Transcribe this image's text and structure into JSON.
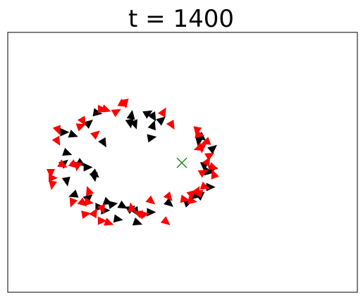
{
  "chart_data": {
    "type": "scatter",
    "title": "t = 1400",
    "marker": "triangle-arrow",
    "frame": "box",
    "axes_visible": false,
    "grid": false,
    "xlim": [
      0,
      1
    ],
    "ylim": [
      0,
      1
    ],
    "colors": {
      "red": "#ff0000",
      "black": "#000000",
      "target": "#228b22"
    },
    "target": {
      "x": 0.498,
      "y": 0.498,
      "symbol": "x"
    },
    "series": [
      {
        "color": "red",
        "points": [
          {
            "x": 0.27,
            "y": 0.705,
            "a": 0
          },
          {
            "x": 0.33,
            "y": 0.723,
            "a": -30
          },
          {
            "x": 0.446,
            "y": 0.695,
            "a": 60
          },
          {
            "x": 0.47,
            "y": 0.642,
            "a": -60
          },
          {
            "x": 0.541,
            "y": 0.62,
            "a": -100
          },
          {
            "x": 0.549,
            "y": 0.606,
            "a": -10
          },
          {
            "x": 0.566,
            "y": 0.577,
            "a": 200
          },
          {
            "x": 0.555,
            "y": 0.553,
            "a": -90
          },
          {
            "x": 0.579,
            "y": 0.528,
            "a": 30
          },
          {
            "x": 0.572,
            "y": 0.505,
            "a": 60
          },
          {
            "x": 0.589,
            "y": 0.48,
            "a": -20
          },
          {
            "x": 0.589,
            "y": 0.455,
            "a": 110
          },
          {
            "x": 0.56,
            "y": 0.463,
            "a": 30
          },
          {
            "x": 0.544,
            "y": 0.384,
            "a": 160
          },
          {
            "x": 0.507,
            "y": 0.357,
            "a": -10
          },
          {
            "x": 0.462,
            "y": 0.365,
            "a": -50
          },
          {
            "x": 0.454,
            "y": 0.27,
            "a": -40
          },
          {
            "x": 0.392,
            "y": 0.3,
            "a": 10
          },
          {
            "x": 0.372,
            "y": 0.305,
            "a": 160
          },
          {
            "x": 0.29,
            "y": 0.266,
            "a": -20
          },
          {
            "x": 0.27,
            "y": 0.275,
            "a": 0
          },
          {
            "x": 0.224,
            "y": 0.301,
            "a": 10
          },
          {
            "x": 0.216,
            "y": 0.342,
            "a": -40
          },
          {
            "x": 0.184,
            "y": 0.344,
            "a": -110
          },
          {
            "x": 0.127,
            "y": 0.412,
            "a": -100
          },
          {
            "x": 0.123,
            "y": 0.458,
            "a": -90
          },
          {
            "x": 0.158,
            "y": 0.489,
            "a": -30
          },
          {
            "x": 0.19,
            "y": 0.489,
            "a": -40
          },
          {
            "x": 0.144,
            "y": 0.623,
            "a": -70
          },
          {
            "x": 0.21,
            "y": 0.64,
            "a": 20
          },
          {
            "x": 0.253,
            "y": 0.61,
            "a": 40
          },
          {
            "x": 0.216,
            "y": 0.657,
            "a": -60
          },
          {
            "x": 0.312,
            "y": 0.696,
            "a": 30
          },
          {
            "x": 0.336,
            "y": 0.726,
            "a": -80
          },
          {
            "x": 0.232,
            "y": 0.346,
            "a": -10
          },
          {
            "x": 0.271,
            "y": 0.319,
            "a": -70
          },
          {
            "x": 0.353,
            "y": 0.327,
            "a": 100
          },
          {
            "x": 0.565,
            "y": 0.405,
            "a": -20
          },
          {
            "x": 0.528,
            "y": 0.382,
            "a": 40
          },
          {
            "x": 0.282,
            "y": 0.702,
            "a": -20
          },
          {
            "x": 0.129,
            "y": 0.44,
            "a": 0
          },
          {
            "x": 0.249,
            "y": 0.307,
            "a": 60
          },
          {
            "x": 0.411,
            "y": 0.35,
            "a": -40
          },
          {
            "x": 0.542,
            "y": 0.392,
            "a": 60
          },
          {
            "x": 0.545,
            "y": 0.554,
            "a": 200
          },
          {
            "x": 0.143,
            "y": 0.58,
            "a": -60
          },
          {
            "x": 0.199,
            "y": 0.484,
            "a": -100
          },
          {
            "x": 0.231,
            "y": 0.391,
            "a": 110
          },
          {
            "x": 0.528,
            "y": 0.351,
            "a": -10
          }
        ]
      },
      {
        "color": "black",
        "points": [
          {
            "x": 0.162,
            "y": 0.616,
            "a": 0
          },
          {
            "x": 0.188,
            "y": 0.605,
            "a": -20
          },
          {
            "x": 0.233,
            "y": 0.652,
            "a": 40
          },
          {
            "x": 0.257,
            "y": 0.69,
            "a": -10
          },
          {
            "x": 0.354,
            "y": 0.683,
            "a": 80
          },
          {
            "x": 0.35,
            "y": 0.649,
            "a": -80
          },
          {
            "x": 0.402,
            "y": 0.69,
            "a": 30
          },
          {
            "x": 0.417,
            "y": 0.674,
            "a": -60
          },
          {
            "x": 0.441,
            "y": 0.664,
            "a": 40
          },
          {
            "x": 0.412,
            "y": 0.595,
            "a": 10
          },
          {
            "x": 0.275,
            "y": 0.574,
            "a": -60
          },
          {
            "x": 0.171,
            "y": 0.535,
            "a": -20
          },
          {
            "x": 0.162,
            "y": 0.498,
            "a": 40
          },
          {
            "x": 0.21,
            "y": 0.495,
            "a": -30
          },
          {
            "x": 0.229,
            "y": 0.481,
            "a": 0
          },
          {
            "x": 0.251,
            "y": 0.453,
            "a": -40
          },
          {
            "x": 0.169,
            "y": 0.426,
            "a": -80
          },
          {
            "x": 0.187,
            "y": 0.374,
            "a": 200
          },
          {
            "x": 0.232,
            "y": 0.365,
            "a": 40
          },
          {
            "x": 0.279,
            "y": 0.315,
            "a": 0
          },
          {
            "x": 0.287,
            "y": 0.346,
            "a": -20
          },
          {
            "x": 0.263,
            "y": 0.328,
            "a": 0
          },
          {
            "x": 0.301,
            "y": 0.339,
            "a": 10
          },
          {
            "x": 0.33,
            "y": 0.331,
            "a": -30
          },
          {
            "x": 0.316,
            "y": 0.281,
            "a": -10
          },
          {
            "x": 0.353,
            "y": 0.323,
            "a": 30
          },
          {
            "x": 0.372,
            "y": 0.267,
            "a": -20
          },
          {
            "x": 0.367,
            "y": 0.309,
            "a": -60
          },
          {
            "x": 0.41,
            "y": 0.308,
            "a": 0
          },
          {
            "x": 0.463,
            "y": 0.341,
            "a": -40
          },
          {
            "x": 0.517,
            "y": 0.347,
            "a": 20
          },
          {
            "x": 0.537,
            "y": 0.37,
            "a": -10
          },
          {
            "x": 0.553,
            "y": 0.375,
            "a": 40
          },
          {
            "x": 0.58,
            "y": 0.405,
            "a": 0
          },
          {
            "x": 0.576,
            "y": 0.463,
            "a": -10
          },
          {
            "x": 0.587,
            "y": 0.476,
            "a": 10
          },
          {
            "x": 0.562,
            "y": 0.484,
            "a": -90
          },
          {
            "x": 0.588,
            "y": 0.555,
            "a": 40
          },
          {
            "x": 0.556,
            "y": 0.595,
            "a": -40
          },
          {
            "x": 0.546,
            "y": 0.58,
            "a": -100
          },
          {
            "x": 0.416,
            "y": 0.644,
            "a": 70
          },
          {
            "x": 0.364,
            "y": 0.645,
            "a": -70
          },
          {
            "x": 0.248,
            "y": 0.443,
            "a": -80
          }
        ]
      }
    ]
  }
}
